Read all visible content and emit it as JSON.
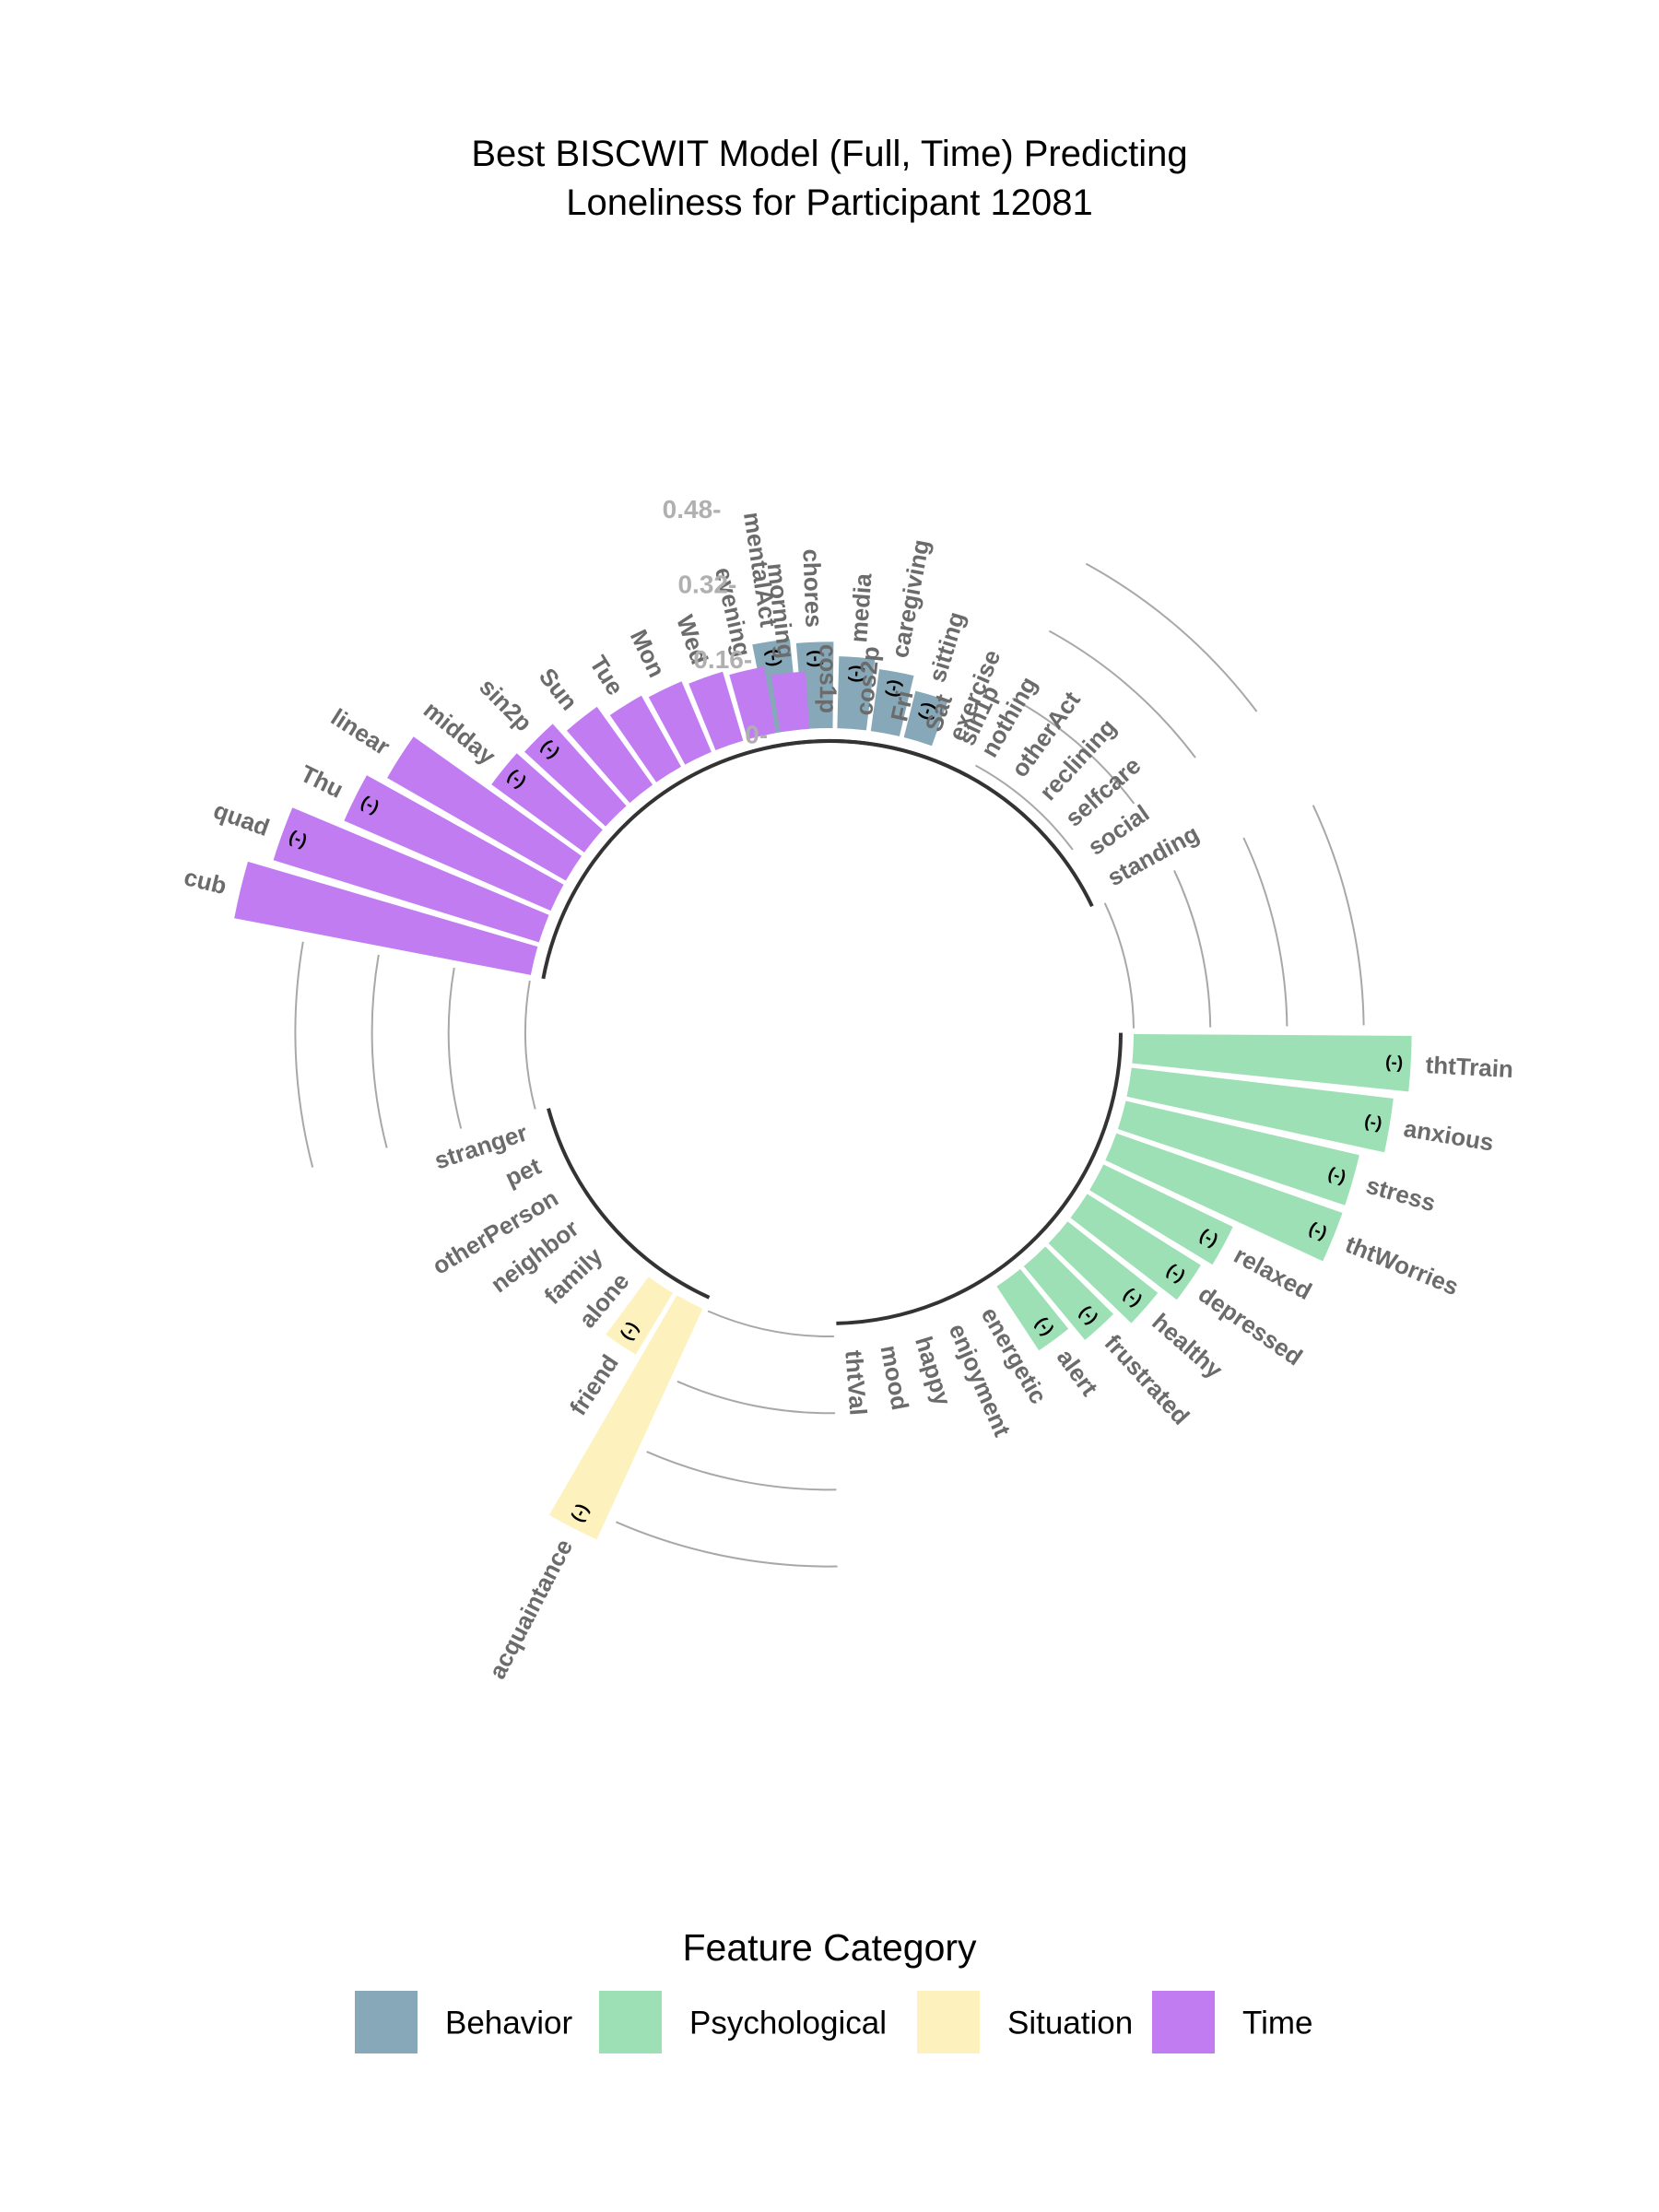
{
  "chart_data": {
    "type": "bar",
    "polar": true,
    "title": [
      "Best BISCWIT Model (Full, Time) Predicting",
      "Loneliness for Participant 12081"
    ],
    "radial_ticks": [
      {
        "value": 0,
        "label": "0-"
      },
      {
        "value": 0.16,
        "label": "0.16-"
      },
      {
        "value": 0.32,
        "label": "0.32-"
      },
      {
        "value": 0.48,
        "label": "0.48-"
      }
    ],
    "negative_marker": "(-)",
    "legend": {
      "title": "Feature Category",
      "position": "bottom",
      "entries": [
        {
          "label": "Behavior",
          "color": "#86a8b8"
        },
        {
          "label": "Psychological",
          "color": "#9ee0b5"
        },
        {
          "label": "Situation",
          "color": "#fdf2bd"
        },
        {
          "label": "Time",
          "color": "#c17cf2"
        }
      ]
    },
    "groups": [
      {
        "category": "Behavior",
        "color": "#86a8b8",
        "features": [
          {
            "name": "mentalAct",
            "value": 0.19,
            "negative": true
          },
          {
            "name": "chores",
            "value": 0.18,
            "negative": true
          },
          {
            "name": "media",
            "value": 0.15,
            "negative": true
          },
          {
            "name": "caregiving",
            "value": 0.13,
            "negative": true
          },
          {
            "name": "sitting",
            "value": 0.1,
            "negative": true
          },
          {
            "name": "exercise",
            "value": 0,
            "negative": false
          },
          {
            "name": "nothing",
            "value": 0,
            "negative": false
          },
          {
            "name": "otherAct",
            "value": 0,
            "negative": false
          },
          {
            "name": "reclining",
            "value": 0,
            "negative": false
          },
          {
            "name": "selfcare",
            "value": 0,
            "negative": false
          },
          {
            "name": "social",
            "value": 0,
            "negative": false
          },
          {
            "name": "standing",
            "value": 0,
            "negative": false
          }
        ]
      },
      {
        "category": "Psychological",
        "color": "#9ee0b5",
        "features": [
          {
            "name": "thtTrain",
            "value": 0.58,
            "negative": true
          },
          {
            "name": "anxious",
            "value": 0.55,
            "negative": true
          },
          {
            "name": "stress",
            "value": 0.5,
            "negative": true
          },
          {
            "name": "thtWorries",
            "value": 0.5,
            "negative": true
          },
          {
            "name": "relaxed",
            "value": 0.3,
            "negative": true
          },
          {
            "name": "depressed",
            "value": 0.28,
            "negative": true
          },
          {
            "name": "healthy",
            "value": 0.24,
            "negative": true
          },
          {
            "name": "frustrated",
            "value": 0.2,
            "negative": true
          },
          {
            "name": "alert",
            "value": 0.16,
            "negative": true
          },
          {
            "name": "energetic",
            "value": 0,
            "negative": false
          },
          {
            "name": "enjoyment",
            "value": 0,
            "negative": false
          },
          {
            "name": "happy",
            "value": 0,
            "negative": false
          },
          {
            "name": "mood",
            "value": 0,
            "negative": false
          },
          {
            "name": "thtVal",
            "value": 0,
            "negative": false
          }
        ]
      },
      {
        "category": "Situation",
        "color": "#fdf2bd",
        "features": [
          {
            "name": "acquaintance",
            "value": 0.53,
            "negative": true
          },
          {
            "name": "friend",
            "value": 0.15,
            "negative": true
          },
          {
            "name": "alone",
            "value": 0,
            "negative": false
          },
          {
            "name": "family",
            "value": 0,
            "negative": false
          },
          {
            "name": "neighbor",
            "value": 0,
            "negative": false
          },
          {
            "name": "otherPerson",
            "value": 0,
            "negative": false
          },
          {
            "name": "pet",
            "value": 0,
            "negative": false
          },
          {
            "name": "stranger",
            "value": 0,
            "negative": false
          }
        ]
      },
      {
        "category": "Time",
        "color": "#c17cf2",
        "features": [
          {
            "name": "cub",
            "value": 0.63,
            "negative": false
          },
          {
            "name": "quad",
            "value": 0.58,
            "negative": true
          },
          {
            "name": "Thu",
            "value": 0.47,
            "negative": true
          },
          {
            "name": "linear",
            "value": 0.43,
            "negative": false
          },
          {
            "name": "midday",
            "value": 0.24,
            "negative": true
          },
          {
            "name": "sin2p",
            "value": 0.23,
            "negative": true
          },
          {
            "name": "Sun",
            "value": 0.2,
            "negative": false
          },
          {
            "name": "Tue",
            "value": 0.17,
            "negative": false
          },
          {
            "name": "Mon",
            "value": 0.16,
            "negative": false
          },
          {
            "name": "Wed",
            "value": 0.15,
            "negative": false
          },
          {
            "name": "evening",
            "value": 0.14,
            "negative": false
          },
          {
            "name": "morning",
            "value": 0.12,
            "negative": false
          },
          {
            "name": "cos1p",
            "value": 0,
            "negative": false
          },
          {
            "name": "cos2p",
            "value": 0,
            "negative": false
          },
          {
            "name": "Fri",
            "value": 0,
            "negative": false
          },
          {
            "name": "Sat",
            "value": 0,
            "negative": false
          },
          {
            "name": "sin1p",
            "value": 0,
            "negative": false
          }
        ]
      }
    ]
  }
}
